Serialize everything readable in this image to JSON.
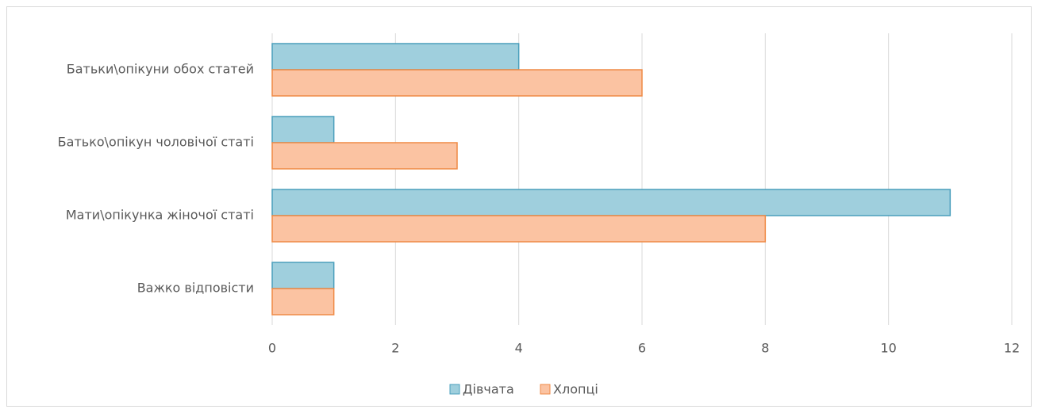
{
  "chart_data": {
    "type": "hbar",
    "categories": [
      "Батьки\\опікуни обох статей",
      "Батько\\опікун чоловічої статі",
      "Мати\\опікунка жіночої статі",
      "Важко відповісти"
    ],
    "series": [
      {
        "name": "Дівчата",
        "color": "#9fcfdd",
        "values": [
          4,
          1,
          11,
          1
        ]
      },
      {
        "name": "Хлопці",
        "color": "#fbc3a2",
        "values": [
          6,
          3,
          8,
          1
        ]
      }
    ],
    "xlim": [
      0,
      12
    ],
    "xticks": [
      0,
      2,
      4,
      6,
      8,
      10,
      12
    ],
    "grid": true,
    "legend": "bottom"
  }
}
